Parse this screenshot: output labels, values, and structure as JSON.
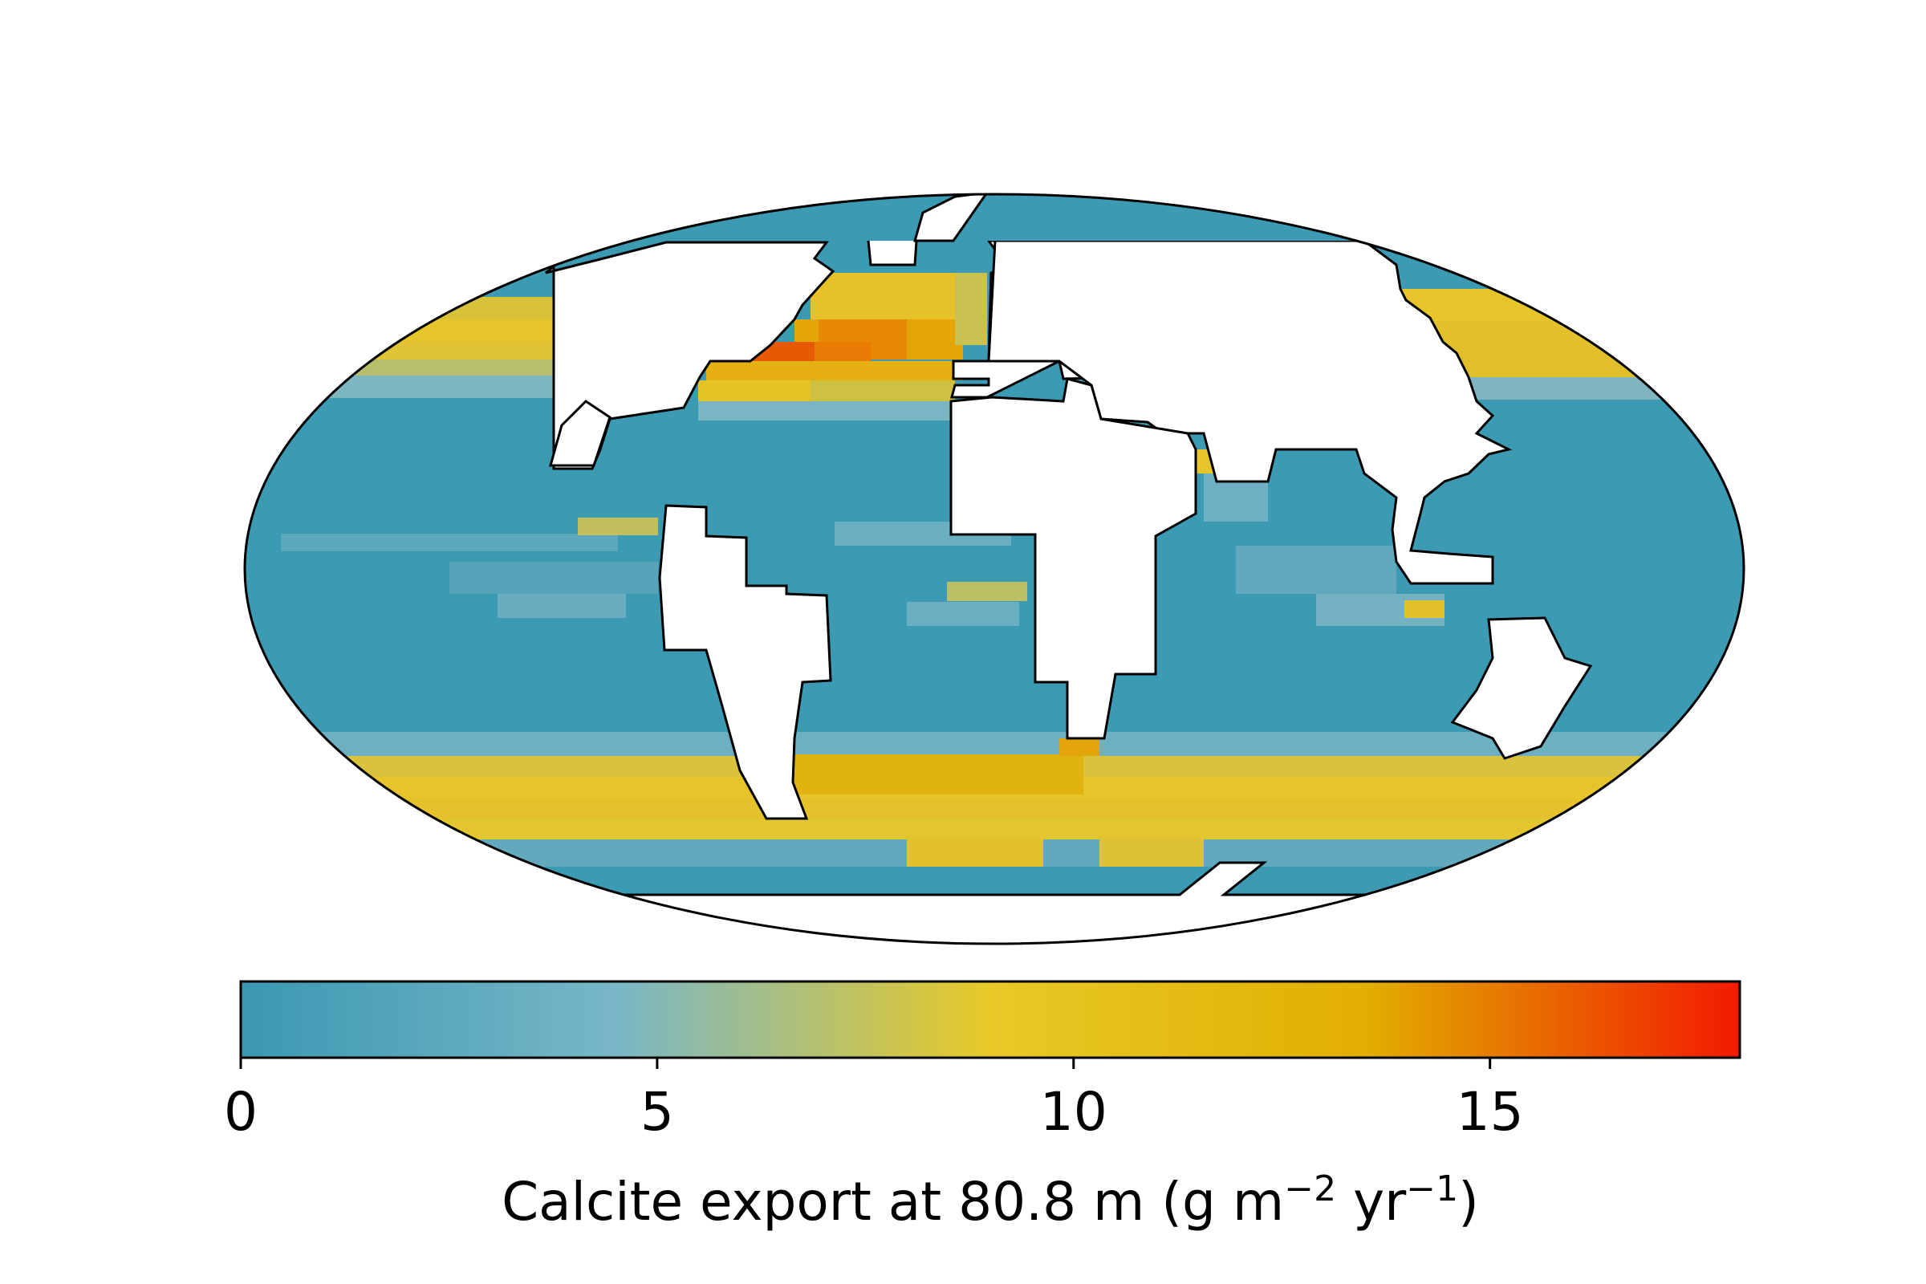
{
  "colorbar": {
    "min": 0,
    "max": 18,
    "ticks": [
      {
        "value": 0,
        "label": "0"
      },
      {
        "value": 5,
        "label": "5"
      },
      {
        "value": 10,
        "label": "10"
      },
      {
        "value": 15,
        "label": "15"
      }
    ],
    "label_main": "Calcite export at 80.8 m (g m",
    "label_exp1": "−2",
    "label_mid": " yr",
    "label_exp2": "−1",
    "label_end": ")",
    "colormap": [
      {
        "value": 0,
        "color": "#3b98b2"
      },
      {
        "value": 4.5,
        "color": "#78b7c7"
      },
      {
        "value": 9,
        "color": "#e8c927"
      },
      {
        "value": 13.5,
        "color": "#e1af00"
      },
      {
        "value": 18,
        "color": "#f21a00"
      }
    ]
  },
  "map": {
    "projection": "mollweide",
    "field": "calcite export",
    "colors": {
      "ocean_base": "#3d9ab3",
      "land": "#ffffff",
      "outline": "#000000"
    }
  }
}
